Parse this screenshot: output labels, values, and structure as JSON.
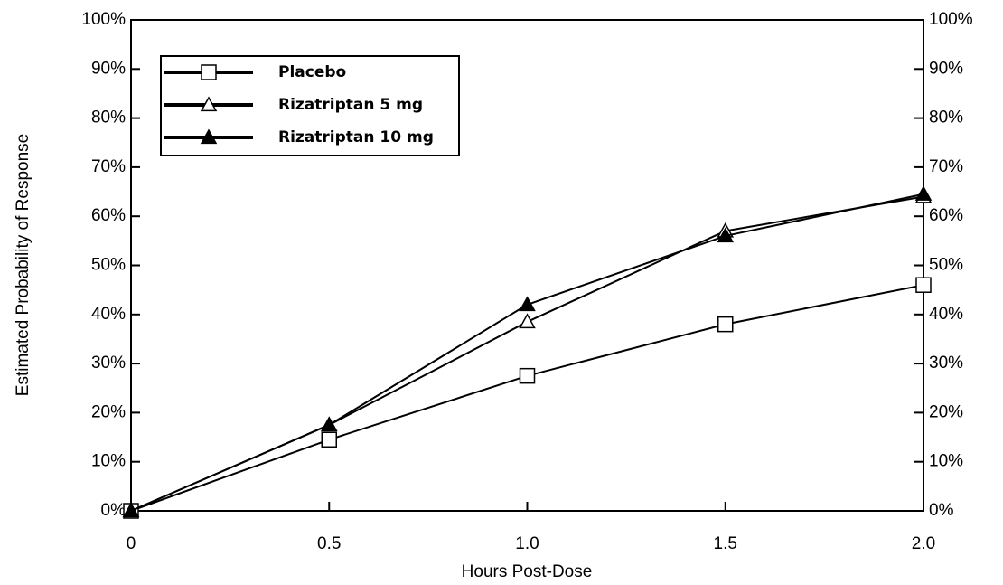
{
  "chart_data": {
    "type": "line",
    "x_label": "Hours Post-Dose",
    "y_label": "Estimated Probability of Response",
    "x": [
      0,
      0.5,
      1,
      1.5,
      2
    ],
    "series": [
      {
        "name": "Placebo",
        "color": "#000000",
        "marker": "square-open",
        "values": [
          0,
          14.5,
          27.5,
          38,
          46
        ]
      },
      {
        "name": "Rizatriptan 5 mg",
        "color": "#000000",
        "marker": "triangle-open",
        "values": [
          0,
          17.5,
          38.5,
          57,
          64
        ]
      },
      {
        "name": "Rizatriptan 10 mg",
        "color": "#000000",
        "marker": "triangle-filled",
        "values": [
          0,
          17.5,
          42,
          56,
          64.5
        ]
      }
    ],
    "xlim": [
      0,
      2
    ],
    "xticks": [
      0,
      0.5,
      {
        "value": 1,
        "label": "1.0"
      },
      1.5,
      {
        "value": 2,
        "label": "2.0"
      }
    ],
    "ylim": [
      0,
      100
    ],
    "yticks": [
      {
        "value": 0,
        "label": "0%"
      },
      {
        "value": 10,
        "label": "10%"
      },
      {
        "value": 20,
        "label": "20%"
      },
      {
        "value": 30,
        "label": "30%"
      },
      {
        "value": 40,
        "label": "40%"
      },
      {
        "value": 50,
        "label": "50%"
      },
      {
        "value": 60,
        "label": "60%"
      },
      {
        "value": 70,
        "label": "70%"
      },
      {
        "value": 80,
        "label": "80%"
      },
      {
        "value": 90,
        "label": "90%"
      },
      {
        "value": 100,
        "label": "100%"
      }
    ],
    "y2lim": [
      0,
      100
    ],
    "y2ticks": [
      {
        "value": 0,
        "label": "0%"
      },
      {
        "value": 10,
        "label": "10%"
      },
      {
        "value": 20,
        "label": "20%"
      },
      {
        "value": 30,
        "label": "30%"
      },
      {
        "value": 40,
        "label": "40%"
      },
      {
        "value": 50,
        "label": "50%"
      },
      {
        "value": 60,
        "label": "60%"
      },
      {
        "value": 70,
        "label": "70%"
      },
      {
        "value": 80,
        "label": "80%"
      },
      {
        "value": 90,
        "label": "90%"
      },
      {
        "value": 100,
        "label": "100%"
      }
    ],
    "legend": "upper left"
  }
}
